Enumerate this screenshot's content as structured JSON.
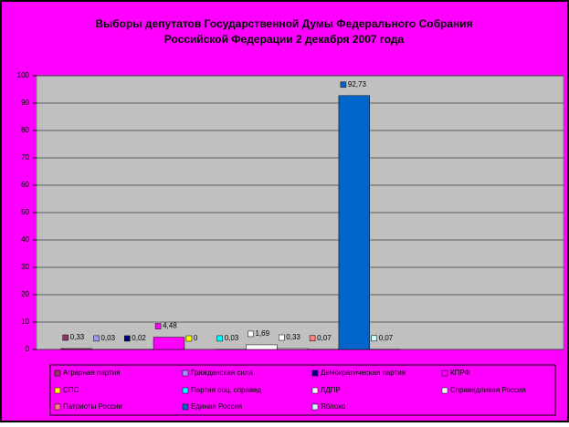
{
  "chart_data": {
    "type": "bar",
    "title": [
      "Выборы депутатов Государственной Думы Федерального Собрания",
      "Российской Федерации 2 декабря 2007 года"
    ],
    "categories": [
      "Аграрная партия",
      "Гражданская сила",
      "Демократическая партия",
      "КПРФ",
      "СПС",
      "Партия соц. справед",
      "ЛДПР",
      "Справедливая Россия",
      "Патриоты России",
      "Единая Россия",
      "Яблоко"
    ],
    "values": [
      0.33,
      0.03,
      0.02,
      4.48,
      0,
      0.03,
      1.69,
      0.33,
      0.07,
      92.73,
      0.07
    ],
    "value_labels": [
      "0,33",
      "0,03",
      "0,02",
      "4,48",
      "0",
      "0,03",
      "1,69",
      "0,33",
      "0,07",
      "92,73",
      "0,07"
    ],
    "colors": [
      "#993366",
      "#9999ff",
      "#000080",
      "#ff00ff",
      "#ffff00",
      "#00ffff",
      "#ffffff",
      "#ffffff",
      "#ff8080",
      "#0066cc",
      "#ccffff"
    ],
    "ylim": [
      0,
      100
    ],
    "yticks": [
      0,
      10,
      20,
      30,
      40,
      50,
      60,
      70,
      80,
      90,
      100
    ],
    "grid": true
  }
}
